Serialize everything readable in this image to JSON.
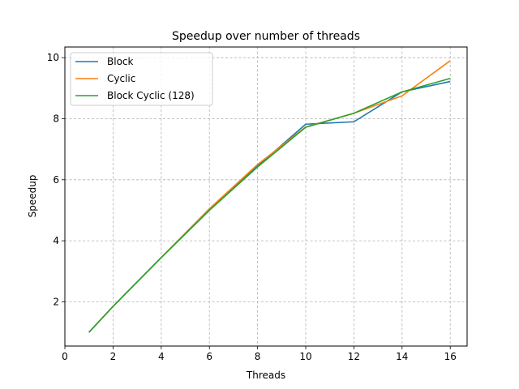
{
  "chart_data": {
    "type": "line",
    "title": "Speedup over number of threads",
    "xlabel": "Threads",
    "ylabel": "Speedup",
    "xlim": [
      0,
      16.7
    ],
    "ylim": [
      0.55,
      10.35
    ],
    "xticks": [
      0,
      2,
      4,
      6,
      8,
      10,
      12,
      14,
      16
    ],
    "yticks": [
      2,
      4,
      6,
      8,
      10
    ],
    "grid": true,
    "legend_position": "top-left",
    "x": [
      1,
      2,
      4,
      6,
      8,
      10,
      12,
      14,
      16
    ],
    "series": [
      {
        "name": "Block",
        "color": "#1f77b4",
        "values": [
          1.0,
          1.85,
          3.45,
          5.0,
          6.45,
          7.82,
          7.9,
          8.88,
          9.22
        ]
      },
      {
        "name": "Cyclic",
        "color": "#ff7f0e",
        "values": [
          1.0,
          1.85,
          3.45,
          5.05,
          6.5,
          7.73,
          8.18,
          8.75,
          9.9
        ]
      },
      {
        "name": "Block Cyclic (128)",
        "color": "#2ca02c",
        "values": [
          1.0,
          1.85,
          3.45,
          5.0,
          6.42,
          7.72,
          8.18,
          8.88,
          9.32
        ]
      }
    ]
  }
}
